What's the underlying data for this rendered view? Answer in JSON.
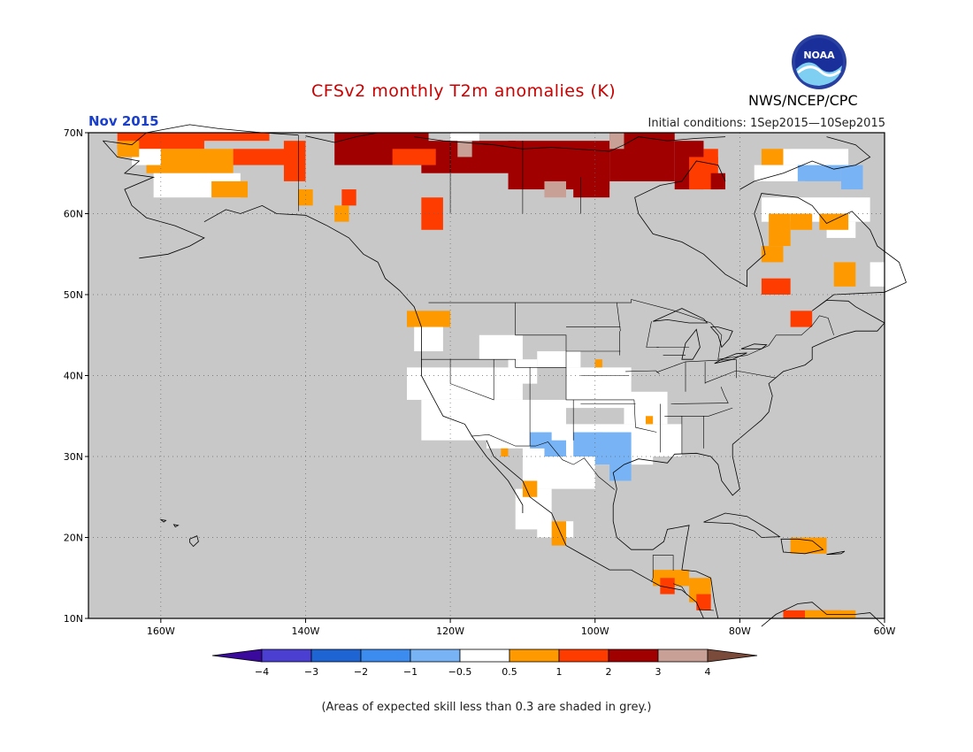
{
  "header": {
    "title": "CFSv2 monthly T2m anomalies (K)",
    "month": "Nov 2015",
    "initial_conditions": "Initial conditions: 1Sep2015—10Sep2015",
    "org": "NWS/NCEP/CPC",
    "logo_text": "NOAA"
  },
  "map": {
    "lat_labels": [
      "70N",
      "60N",
      "50N",
      "40N",
      "30N",
      "20N",
      "10N"
    ],
    "lon_labels": [
      "160W",
      "140W",
      "120W",
      "100W",
      "80W",
      "60W"
    ],
    "lon_range": [
      -170,
      -60
    ],
    "lat_range": [
      10,
      70
    ],
    "background_color": "#c8c8c8"
  },
  "colorbar": {
    "labels": [
      "−4",
      "−3",
      "−2",
      "−1",
      "−0.5",
      "0.5",
      "1",
      "2",
      "3",
      "4"
    ],
    "colors": [
      "#3a0a9c",
      "#4b3fd1",
      "#1e64d2",
      "#3c8cf0",
      "#78b4f5",
      "#ffffff",
      "#ff9900",
      "#ff3c00",
      "#a00000",
      "#c8a096",
      "#7a4a3a"
    ]
  },
  "footer": {
    "note": "(Areas of expected skill less than 0.3 are shaded in grey.)"
  },
  "colors": {
    "white": "#ffffff",
    "orange": "#ff9900",
    "red": "#ff3c00",
    "darkred": "#a00000",
    "tan": "#c8a096",
    "lightblue": "#78b4f5"
  }
}
